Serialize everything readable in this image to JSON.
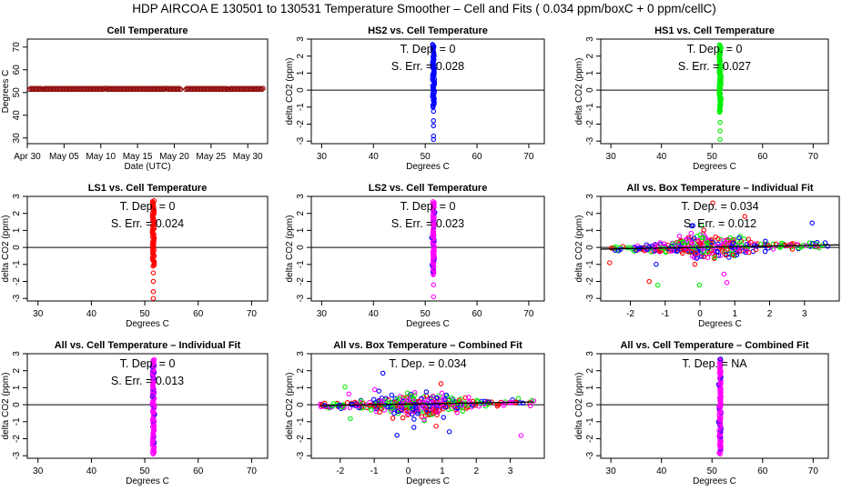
{
  "figure_title": "HDP   AIRCOA E   130501 to 130531   Temperature Smoother – Cell and Fits ( 0.034  ppm/boxC +  0  ppm/cellC)",
  "colors": {
    "red": "#ff0000",
    "green": "#00ee00",
    "blue": "#0000ff",
    "magenta": "#ff00ff",
    "darkred": "#8b0000",
    "axis": "#000000"
  },
  "chart_data": [
    {
      "id": "p1",
      "type": "scatter",
      "title": "Cell Temperature",
      "xlabel": "Date (UTC)",
      "ylabel": "Degrees C",
      "xlim": [
        0,
        32.7
      ],
      "ylim": [
        27.5,
        73.5
      ],
      "xtick_vals": [
        0,
        5,
        10,
        15,
        20,
        25,
        30
      ],
      "xtick_labels": [
        "Apr 30",
        "May 05",
        "May 10",
        "May 15",
        "May 20",
        "May 25",
        "May 30"
      ],
      "yticks": [
        30,
        40,
        50,
        60,
        70
      ],
      "hline": null,
      "annotations": [],
      "series": [
        {
          "name": "cell",
          "color": "darkred",
          "kind": "timeseries",
          "x_range": [
            0.3,
            32.2
          ],
          "y": 51.6,
          "gap": [
            20.9,
            21.4
          ]
        }
      ]
    },
    {
      "id": "p2",
      "type": "scatter",
      "title": "HS2 vs. Cell Temperature",
      "xlabel": "Degrees C",
      "ylabel": "delta CO2 (ppm)",
      "xlim": [
        28,
        73
      ],
      "ylim": [
        -3.15,
        3.0
      ],
      "xticks": [
        30,
        40,
        50,
        60,
        70
      ],
      "yticks": [
        -3,
        -2,
        -1,
        0,
        1,
        2,
        3
      ],
      "hline": 0,
      "annotations": [
        {
          "label": "T. Dep. = ",
          "value": "0"
        },
        {
          "label": "S. Err. = ",
          "value": "0.028"
        }
      ],
      "series": [
        {
          "name": "HS2",
          "color": "blue",
          "kind": "column",
          "x": 51.6,
          "dense": [
            -1.0,
            2.7
          ],
          "outliers": [
            -1.25,
            -1.8,
            -2.1,
            -2.7,
            -2.9
          ]
        }
      ]
    },
    {
      "id": "p3",
      "type": "scatter",
      "title": "HS1 vs. Cell Temperature",
      "xlabel": "Degrees C",
      "ylabel": "delta CO2 (ppm)",
      "xlim": [
        28,
        73
      ],
      "ylim": [
        -3.15,
        3.0
      ],
      "xticks": [
        30,
        40,
        50,
        60,
        70
      ],
      "yticks": [
        -3,
        -2,
        -1,
        0,
        1,
        2,
        3
      ],
      "hline": 0,
      "annotations": [
        {
          "label": "T. Dep. = ",
          "value": "0"
        },
        {
          "label": "S. Err. = ",
          "value": "0.027"
        }
      ],
      "series": [
        {
          "name": "HS1",
          "color": "green",
          "kind": "column",
          "x": 51.6,
          "dense": [
            -1.3,
            2.7
          ],
          "outliers": [
            -1.9,
            -2.4,
            -2.9
          ]
        }
      ]
    },
    {
      "id": "p4",
      "type": "scatter",
      "title": "LS1 vs. Cell Temperature",
      "xlabel": "Degrees C",
      "ylabel": "delta CO2 (ppm)",
      "xlim": [
        28,
        73
      ],
      "ylim": [
        -3.15,
        3.0
      ],
      "xticks": [
        30,
        40,
        50,
        60,
        70
      ],
      "yticks": [
        -3,
        -2,
        -1,
        0,
        1,
        2,
        3
      ],
      "hline": 0,
      "annotations": [
        {
          "label": "T. Dep. = ",
          "value": "0"
        },
        {
          "label": "S. Err. = ",
          "value": "0.024"
        }
      ],
      "series": [
        {
          "name": "LS1",
          "color": "red",
          "kind": "column",
          "x": 51.6,
          "dense": [
            -1.1,
            2.8
          ],
          "outliers": [
            -1.5,
            -2.0,
            -2.6,
            -3.0
          ]
        }
      ]
    },
    {
      "id": "p5",
      "type": "scatter",
      "title": "LS2 vs. Cell Temperature",
      "xlabel": "Degrees C",
      "ylabel": "delta CO2 (ppm)",
      "xlim": [
        28,
        73
      ],
      "ylim": [
        -3.15,
        3.0
      ],
      "xticks": [
        30,
        40,
        50,
        60,
        70
      ],
      "yticks": [
        -3,
        -2,
        -1,
        0,
        1,
        2,
        3
      ],
      "hline": 0,
      "annotations": [
        {
          "label": "T. Dep. = ",
          "value": "0"
        },
        {
          "label": "S. Err. = ",
          "value": "0.023"
        }
      ],
      "series": [
        {
          "name": "LS2",
          "color": "magenta",
          "kind": "column",
          "x": 51.6,
          "dense": [
            -1.6,
            2.7
          ],
          "outliers": [
            -2.2,
            -2.9
          ],
          "overlay": "blue"
        }
      ]
    },
    {
      "id": "p6",
      "type": "scatter",
      "title": "All vs. Box Temperature – Individual Fit",
      "xlabel": "Degrees C",
      "ylabel": "delta CO2 (ppm)",
      "xlim": [
        -2.85,
        4.0
      ],
      "ylim": [
        -3.15,
        3.0
      ],
      "xticks": [
        -2,
        -1,
        0,
        1,
        2,
        3
      ],
      "yticks": [
        -3,
        -2,
        -1,
        0,
        1,
        2,
        3
      ],
      "hline": 0,
      "annotations": [
        {
          "label": "T. Dep. = ",
          "value": "0.034"
        },
        {
          "label": "S. Err. = ",
          "value": "0.012"
        }
      ],
      "fit_line": {
        "x": [
          -2.85,
          4.0
        ],
        "y": [
          -0.1,
          0.15
        ]
      },
      "series": [
        {
          "name": "All",
          "kind": "cloud",
          "colors": [
            "blue",
            "red",
            "green",
            "magenta"
          ],
          "x_range": [
            -2.6,
            3.7
          ],
          "seed": 6
        }
      ]
    },
    {
      "id": "p7",
      "type": "scatter",
      "title": "All vs. Cell Temperature – Individual Fit",
      "xlabel": "Degrees C",
      "ylabel": "delta CO2 (ppm)",
      "xlim": [
        28,
        73
      ],
      "ylim": [
        -3.15,
        3.0
      ],
      "xticks": [
        30,
        40,
        50,
        60,
        70
      ],
      "yticks": [
        -3,
        -2,
        -1,
        0,
        1,
        2,
        3
      ],
      "hline": 0,
      "annotations": [
        {
          "label": "T. Dep. = ",
          "value": "0"
        },
        {
          "label": "S. Err. = ",
          "value": "0.013"
        }
      ],
      "series": [
        {
          "name": "All",
          "color": "magenta",
          "kind": "column",
          "x": 51.6,
          "dense": [
            -2.9,
            2.7
          ],
          "outliers": [],
          "overlay": "blue"
        }
      ]
    },
    {
      "id": "p8",
      "type": "scatter",
      "title": "All vs. Box Temperature – Combined Fit",
      "xlabel": "Degrees C",
      "ylabel": "delta CO2 (ppm)",
      "xlim": [
        -2.85,
        4.0
      ],
      "ylim": [
        -3.15,
        3.0
      ],
      "xticks": [
        -2,
        -1,
        0,
        1,
        2,
        3
      ],
      "yticks": [
        -3,
        -2,
        -1,
        0,
        1,
        2,
        3
      ],
      "hline": 0,
      "annotations": [
        {
          "label": "T. Dep. = ",
          "value": "0.034"
        }
      ],
      "fit_line": {
        "x": [
          -2.6,
          3.7
        ],
        "y": [
          -0.05,
          0.16
        ]
      },
      "series": [
        {
          "name": "All",
          "kind": "cloud",
          "colors": [
            "blue",
            "red",
            "green",
            "magenta"
          ],
          "x_range": [
            -2.6,
            3.7
          ],
          "seed": 8
        }
      ]
    },
    {
      "id": "p9",
      "type": "scatter",
      "title": "All vs. Cell Temperature – Combined Fit",
      "xlabel": "Degrees C",
      "ylabel": "delta CO2 (ppm)",
      "xlim": [
        28,
        73
      ],
      "ylim": [
        -3.15,
        3.0
      ],
      "xticks": [
        30,
        40,
        50,
        60,
        70
      ],
      "yticks": [
        -3,
        -2,
        -1,
        0,
        1,
        2,
        3
      ],
      "hline": 0,
      "annotations": [
        {
          "label": "T. Dep. = ",
          "value": "NA"
        }
      ],
      "series": [
        {
          "name": "All",
          "color": "magenta",
          "kind": "column",
          "x": 51.6,
          "dense": [
            -2.9,
            2.7
          ],
          "outliers": [],
          "overlay": "blue"
        }
      ]
    }
  ]
}
